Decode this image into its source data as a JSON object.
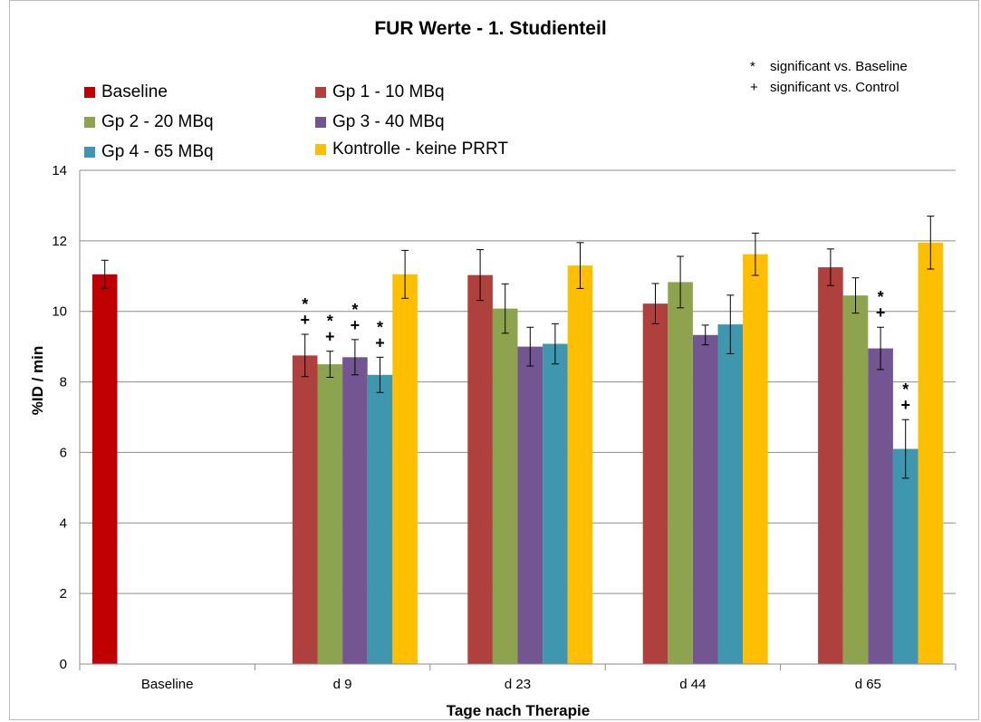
{
  "chart_data": {
    "type": "bar",
    "title": "FUR Werte - 1. Studienteil",
    "xlabel": "Tage nach Therapie",
    "ylabel": "%ID / min",
    "ylim": [
      0,
      14
    ],
    "yticks": [
      0,
      2,
      4,
      6,
      8,
      10,
      12,
      14
    ],
    "grid": true,
    "legend_position": "top-left",
    "categories": [
      "Baseline",
      "d 9",
      "d 23",
      "d 44",
      "d 65"
    ],
    "series": [
      {
        "name": "Baseline",
        "color": "#c00000",
        "values": [
          11.05,
          null,
          null,
          null,
          null
        ],
        "errors": [
          0.4,
          null,
          null,
          null,
          null
        ]
      },
      {
        "name": "Gp 1 - 10 MBq",
        "color": "#b0403d",
        "values": [
          null,
          8.75,
          11.03,
          10.22,
          11.25
        ],
        "errors": [
          null,
          0.6,
          0.72,
          0.57,
          0.52
        ]
      },
      {
        "name": "Gp 2 - 20 MBq",
        "color": "#8ea34e",
        "values": [
          null,
          8.5,
          10.08,
          10.83,
          10.45
        ],
        "errors": [
          null,
          0.37,
          0.7,
          0.73,
          0.5
        ]
      },
      {
        "name": "Gp 3 - 40 MBq",
        "color": "#735591",
        "values": [
          null,
          8.7,
          9.0,
          9.33,
          8.95
        ],
        "errors": [
          null,
          0.5,
          0.55,
          0.28,
          0.6
        ]
      },
      {
        "name": "Gp 4 - 65 MBq",
        "color": "#3e97ae",
        "values": [
          null,
          8.2,
          9.08,
          9.63,
          6.1
        ],
        "errors": [
          null,
          0.5,
          0.57,
          0.83,
          0.83
        ]
      },
      {
        "name": "Kontrolle - keine PRRT",
        "color": "#fdbf00",
        "values": [
          null,
          11.05,
          11.3,
          11.62,
          11.95
        ],
        "errors": [
          null,
          0.68,
          0.65,
          0.6,
          0.75
        ]
      }
    ],
    "significance_markers": [
      {
        "category": "d 9",
        "series": "Gp 1 - 10 MBq",
        "symbols": [
          "*",
          "+"
        ]
      },
      {
        "category": "d 9",
        "series": "Gp 2 - 20 MBq",
        "symbols": [
          "*",
          "+"
        ]
      },
      {
        "category": "d 9",
        "series": "Gp 3 - 40 MBq",
        "symbols": [
          "*",
          "+"
        ]
      },
      {
        "category": "d 9",
        "series": "Gp 4 - 65 MBq",
        "symbols": [
          "*",
          "+"
        ]
      },
      {
        "category": "d 65",
        "series": "Gp 3 - 40 MBq",
        "symbols": [
          "*",
          "+"
        ]
      },
      {
        "category": "d 65",
        "series": "Gp 4 - 65 MBq",
        "symbols": [
          "*",
          "+"
        ]
      }
    ],
    "notes": [
      {
        "symbol": "*",
        "text": "significant vs. Baseline"
      },
      {
        "symbol": "+",
        "text": "significant vs. Control"
      }
    ]
  }
}
